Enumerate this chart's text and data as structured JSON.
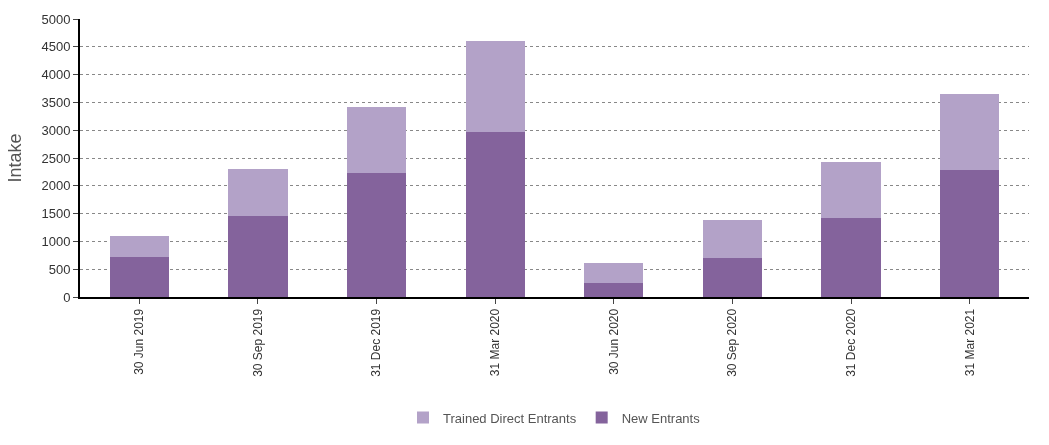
{
  "chart_data": {
    "type": "bar",
    "stacked": true,
    "ylabel": "Intake",
    "categories": [
      "30 Jun 2019",
      "30 Sep 2019",
      "31 Dec 2019",
      "31 Mar 2020",
      "30 Jun 2020",
      "30 Sep 2020",
      "31 Dec 2020",
      "31 Mar 2021"
    ],
    "series": [
      {
        "name": "New Entrants",
        "color": "#84639c",
        "values": [
          720,
          1450,
          2230,
          2970,
          250,
          710,
          1420,
          2280
        ]
      },
      {
        "name": "Trained Direct Entrants",
        "color": "#b3a2c8",
        "values": [
          380,
          850,
          1190,
          1630,
          370,
          670,
          1010,
          1370
        ]
      }
    ],
    "ylim": [
      0,
      5000
    ],
    "yticks": [
      0,
      500,
      1000,
      1500,
      2000,
      2500,
      3000,
      3500,
      4000,
      4500,
      5000
    ],
    "grid": "y",
    "legend": "bottom"
  }
}
